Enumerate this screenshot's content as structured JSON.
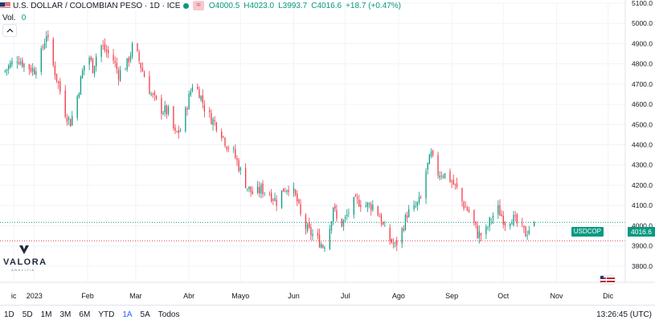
{
  "legend": {
    "symbol": "U.S. DOLLAR / COLOMBIAN PESO · 1D · ICE",
    "tag": "≈",
    "open_label": "O",
    "open": "4000.5",
    "high_label": "H",
    "high": "4023.0",
    "low_label": "L",
    "low": "3993.7",
    "close_label": "C",
    "close": "4016.6",
    "change": "+18.7 (+0.47%)"
  },
  "volume": {
    "label": "Vol.",
    "value": "0"
  },
  "logo": {
    "name": "VALORA",
    "sub": "ANALITIK"
  },
  "last_price": {
    "ticker": "USDCOP",
    "value": "4016.6"
  },
  "range_buttons": [
    {
      "label": "1D"
    },
    {
      "label": "5D"
    },
    {
      "label": "1M"
    },
    {
      "label": "3M"
    },
    {
      "label": "6M"
    },
    {
      "label": "YTD"
    },
    {
      "label": "1A",
      "active": true
    },
    {
      "label": "5A"
    },
    {
      "label": "Todos"
    }
  ],
  "clock": "13:26:45 (UTC)",
  "colors": {
    "up": "#089981",
    "down": "#f23645",
    "grid": "#f0f3fa",
    "axis_text": "#131722"
  },
  "chart_data": {
    "type": "candlestick",
    "title": "U.S. DOLLAR / COLOMBIAN PESO · 1D · ICE",
    "ylim": [
      3720,
      5100
    ],
    "y_ticks": [
      5100,
      5000,
      4900,
      4800,
      4700,
      4600,
      4500,
      4400,
      4300,
      4200,
      4100,
      4000,
      3900,
      3800
    ],
    "y_tick_labels": [
      "5100.0",
      "5000.0",
      "4900.0",
      "4800.0",
      "4700.0",
      "4600.0",
      "4500.0",
      "4400.0",
      "4300.0",
      "4200.0",
      "4100.0",
      "4000.0",
      "3900.0",
      "3800.0"
    ],
    "x_ticks": [
      {
        "label": "ic",
        "day": -2
      },
      {
        "label": "2023",
        "day": 10
      },
      {
        "label": "Feb",
        "day": 41
      },
      {
        "label": "Mar",
        "day": 69
      },
      {
        "label": "Abr",
        "day": 100
      },
      {
        "label": "Mayo",
        "day": 130
      },
      {
        "label": "Jun",
        "day": 161
      },
      {
        "label": "Jul",
        "day": 191
      },
      {
        "label": "Ago",
        "day": 222
      },
      {
        "label": "Sep",
        "day": 253
      },
      {
        "label": "Oct",
        "day": 283
      },
      {
        "label": "Nov",
        "day": 314
      },
      {
        "label": "Dic",
        "day": 344
      }
    ],
    "x_range_days": [
      -10,
      354
    ],
    "path_keypoints": [
      [
        -8,
        4760
      ],
      [
        0,
        4830
      ],
      [
        5,
        4790
      ],
      [
        10,
        4770
      ],
      [
        14,
        4850
      ],
      [
        17,
        4950
      ],
      [
        20,
        4820
      ],
      [
        24,
        4700
      ],
      [
        28,
        4560
      ],
      [
        31,
        4510
      ],
      [
        34,
        4600
      ],
      [
        38,
        4760
      ],
      [
        41,
        4860
      ],
      [
        44,
        4780
      ],
      [
        48,
        4900
      ],
      [
        52,
        4860
      ],
      [
        56,
        4820
      ],
      [
        59,
        4750
      ],
      [
        64,
        4800
      ],
      [
        67,
        4880
      ],
      [
        70,
        4840
      ],
      [
        74,
        4740
      ],
      [
        78,
        4650
      ],
      [
        83,
        4580
      ],
      [
        88,
        4560
      ],
      [
        92,
        4450
      ],
      [
        96,
        4480
      ],
      [
        99,
        4600
      ],
      [
        102,
        4700
      ],
      [
        106,
        4660
      ],
      [
        110,
        4560
      ],
      [
        114,
        4520
      ],
      [
        118,
        4480
      ],
      [
        122,
        4400
      ],
      [
        126,
        4360
      ],
      [
        130,
        4270
      ],
      [
        134,
        4190
      ],
      [
        138,
        4150
      ],
      [
        142,
        4180
      ],
      [
        147,
        4160
      ],
      [
        151,
        4120
      ],
      [
        155,
        4180
      ],
      [
        159,
        4200
      ],
      [
        163,
        4120
      ],
      [
        166,
        4010
      ],
      [
        170,
        3970
      ],
      [
        174,
        3940
      ],
      [
        178,
        3900
      ],
      [
        181,
        3940
      ],
      [
        184,
        4100
      ],
      [
        187,
        3990
      ],
      [
        191,
        4030
      ],
      [
        195,
        4110
      ],
      [
        199,
        4120
      ],
      [
        203,
        4100
      ],
      [
        207,
        4100
      ],
      [
        211,
        4050
      ],
      [
        214,
        3970
      ],
      [
        217,
        3930
      ],
      [
        220,
        3900
      ],
      [
        223,
        3950
      ],
      [
        227,
        4060
      ],
      [
        231,
        4080
      ],
      [
        235,
        4130
      ],
      [
        238,
        4270
      ],
      [
        241,
        4350
      ],
      [
        244,
        4260
      ],
      [
        248,
        4260
      ],
      [
        252,
        4230
      ],
      [
        256,
        4180
      ],
      [
        260,
        4100
      ],
      [
        264,
        4060
      ],
      [
        268,
        3960
      ],
      [
        272,
        3950
      ],
      [
        276,
        4040
      ],
      [
        280,
        4080
      ],
      [
        284,
        4020
      ],
      [
        288,
        4040
      ],
      [
        292,
        4000
      ],
      [
        296,
        3960
      ],
      [
        300,
        4010
      ]
    ],
    "last": {
      "open": 4000.5,
      "high": 4023.0,
      "low": 3993.7,
      "close": 4016.6,
      "change": 18.7,
      "change_pct": 0.47
    },
    "reference_lines": [
      {
        "value": 4016.6,
        "color": "#089981",
        "style": "dotted"
      },
      {
        "value": 3925,
        "color": "#f23645",
        "style": "dotted"
      }
    ]
  }
}
